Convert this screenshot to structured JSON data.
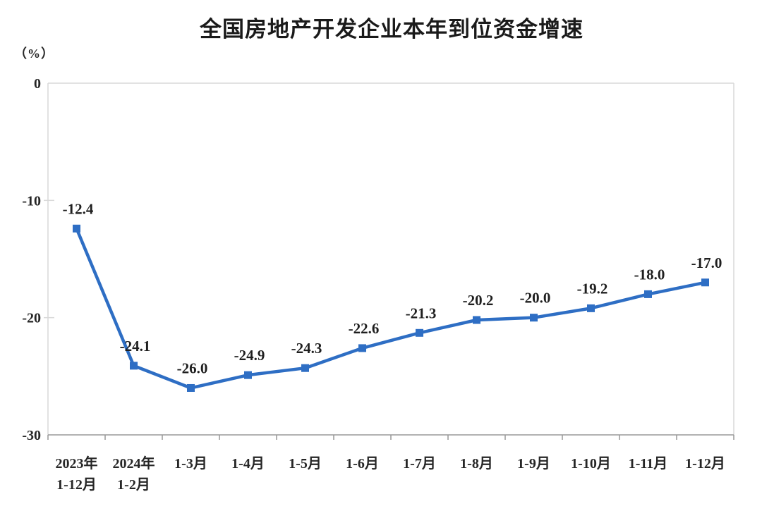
{
  "chart_data": {
    "type": "line",
    "title": "全国房地产开发企业本年到位资金增速",
    "unit_label": "（%）",
    "categories": [
      "2023年\n1-12月",
      "2024年\n1-2月",
      "1-3月",
      "1-4月",
      "1-5月",
      "1-6月",
      "1-7月",
      "1-8月",
      "1-9月",
      "1-10月",
      "1-11月",
      "1-12月"
    ],
    "values": [
      -12.4,
      -24.1,
      -26.0,
      -24.9,
      -24.3,
      -22.6,
      -21.3,
      -20.2,
      -20.0,
      -19.2,
      -18.0,
      -17.0
    ],
    "data_labels": [
      "-12.4",
      "-24.1",
      "-26.0",
      "-24.9",
      "-24.3",
      "-22.6",
      "-21.3",
      "-20.2",
      "-20.0",
      "-19.2",
      "-18.0",
      "-17.0"
    ],
    "xlabel": "",
    "ylabel": "（%）",
    "ylim": [
      -30,
      0
    ],
    "yticks": [
      0,
      -10,
      -20,
      -30
    ],
    "ytick_labels": [
      "0",
      "-10",
      "-20",
      "-30"
    ],
    "grid": "off",
    "legend": "none",
    "marker": "square",
    "colors": {
      "line": "#2E6EC4",
      "marker": "#2E6EC4",
      "axis_text": "#262626",
      "data_label_text": "#1f1f1f",
      "plot_frame": "#D9D9D9",
      "x_axis_line": "#999999",
      "background": "#ffffff"
    }
  }
}
